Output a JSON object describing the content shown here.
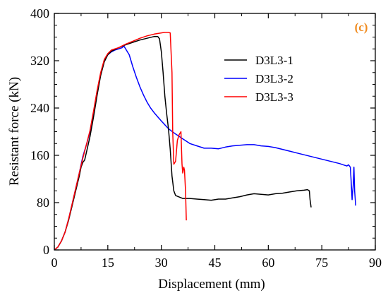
{
  "chart_data": {
    "type": "line",
    "panel_label": "(c)",
    "xlabel": "Displacement (mm)",
    "ylabel": "Resistant force (kN)",
    "xlim": [
      0,
      90
    ],
    "ylim": [
      0,
      400
    ],
    "xticks": [
      0,
      15,
      30,
      45,
      60,
      75,
      90
    ],
    "yticks": [
      0,
      80,
      160,
      240,
      320,
      400
    ],
    "legend_position": "top-right",
    "series": [
      {
        "name": "D3L3-1",
        "color": "#000000",
        "points": [
          [
            0,
            0
          ],
          [
            1,
            5
          ],
          [
            2,
            15
          ],
          [
            3,
            30
          ],
          [
            4,
            50
          ],
          [
            5,
            75
          ],
          [
            6,
            100
          ],
          [
            7,
            125
          ],
          [
            7.5,
            140
          ],
          [
            8,
            148
          ],
          [
            8.5,
            152
          ],
          [
            9,
            165
          ],
          [
            10,
            192
          ],
          [
            11,
            225
          ],
          [
            12,
            262
          ],
          [
            13,
            295
          ],
          [
            14,
            318
          ],
          [
            15,
            330
          ],
          [
            16,
            336
          ],
          [
            18,
            342
          ],
          [
            20,
            347
          ],
          [
            22,
            351
          ],
          [
            24,
            355
          ],
          [
            26,
            358
          ],
          [
            28,
            361
          ],
          [
            29,
            361
          ],
          [
            29.5,
            357
          ],
          [
            30,
            335
          ],
          [
            30.5,
            300
          ],
          [
            31,
            260
          ],
          [
            31.5,
            230
          ],
          [
            32,
            205
          ],
          [
            32.5,
            170
          ],
          [
            33,
            125
          ],
          [
            33.5,
            100
          ],
          [
            34,
            92
          ],
          [
            36,
            87
          ],
          [
            38,
            87
          ],
          [
            40,
            86
          ],
          [
            42,
            85
          ],
          [
            44,
            84
          ],
          [
            46,
            86
          ],
          [
            48,
            86
          ],
          [
            50,
            88
          ],
          [
            52,
            90
          ],
          [
            54,
            93
          ],
          [
            56,
            95
          ],
          [
            58,
            94
          ],
          [
            60,
            93
          ],
          [
            62,
            95
          ],
          [
            64,
            96
          ],
          [
            66,
            98
          ],
          [
            68,
            100
          ],
          [
            70,
            101
          ],
          [
            71,
            102
          ],
          [
            71.5,
            100
          ],
          [
            71.7,
            85
          ],
          [
            72,
            72
          ]
        ]
      },
      {
        "name": "D3L3-2",
        "color": "#0000ff",
        "points": [
          [
            0,
            0
          ],
          [
            1,
            5
          ],
          [
            2,
            15
          ],
          [
            3,
            30
          ],
          [
            4,
            52
          ],
          [
            5,
            78
          ],
          [
            6,
            104
          ],
          [
            7,
            130
          ],
          [
            8,
            158
          ],
          [
            9,
            178
          ],
          [
            10,
            200
          ],
          [
            11,
            232
          ],
          [
            12,
            268
          ],
          [
            13,
            298
          ],
          [
            14,
            320
          ],
          [
            15,
            330
          ],
          [
            16,
            335
          ],
          [
            17,
            338
          ],
          [
            18,
            340
          ],
          [
            19,
            342
          ],
          [
            19.5,
            345
          ],
          [
            20,
            340
          ],
          [
            21,
            330
          ],
          [
            22,
            310
          ],
          [
            23,
            292
          ],
          [
            24,
            276
          ],
          [
            25,
            262
          ],
          [
            26,
            250
          ],
          [
            27,
            240
          ],
          [
            28,
            232
          ],
          [
            30,
            218
          ],
          [
            32,
            205
          ],
          [
            34,
            196
          ],
          [
            36,
            188
          ],
          [
            38,
            180
          ],
          [
            40,
            176
          ],
          [
            42,
            172
          ],
          [
            44,
            172
          ],
          [
            46,
            171
          ],
          [
            48,
            174
          ],
          [
            50,
            176
          ],
          [
            52,
            177
          ],
          [
            54,
            178
          ],
          [
            56,
            178
          ],
          [
            58,
            176
          ],
          [
            60,
            175
          ],
          [
            62,
            173
          ],
          [
            64,
            170
          ],
          [
            66,
            167
          ],
          [
            68,
            164
          ],
          [
            70,
            161
          ],
          [
            72,
            158
          ],
          [
            74,
            155
          ],
          [
            76,
            152
          ],
          [
            78,
            149
          ],
          [
            80,
            146
          ],
          [
            81,
            144
          ],
          [
            82,
            142
          ],
          [
            82.5,
            144
          ],
          [
            83,
            140
          ],
          [
            83.2,
            120
          ],
          [
            83.5,
            85
          ],
          [
            83.8,
            110
          ],
          [
            84,
            140
          ],
          [
            84.2,
            100
          ],
          [
            84.5,
            75
          ]
        ]
      },
      {
        "name": "D3L3-3",
        "color": "#ff0000",
        "points": [
          [
            0,
            0
          ],
          [
            1,
            5
          ],
          [
            2,
            15
          ],
          [
            3,
            30
          ],
          [
            4,
            52
          ],
          [
            5,
            78
          ],
          [
            6,
            104
          ],
          [
            7,
            130
          ],
          [
            8,
            155
          ],
          [
            9,
            178
          ],
          [
            10,
            202
          ],
          [
            11,
            235
          ],
          [
            12,
            270
          ],
          [
            13,
            300
          ],
          [
            14,
            322
          ],
          [
            15,
            332
          ],
          [
            16,
            338
          ],
          [
            18,
            342
          ],
          [
            20,
            348
          ],
          [
            22,
            353
          ],
          [
            24,
            358
          ],
          [
            26,
            362
          ],
          [
            28,
            365
          ],
          [
            30,
            367
          ],
          [
            31,
            368
          ],
          [
            32,
            368
          ],
          [
            32.5,
            367
          ],
          [
            33,
            300
          ],
          [
            33.2,
            200
          ],
          [
            33.5,
            145
          ],
          [
            34,
            150
          ],
          [
            34.5,
            185
          ],
          [
            35,
            195
          ],
          [
            35.5,
            200
          ],
          [
            35.8,
            145
          ],
          [
            36,
            130
          ],
          [
            36.3,
            140
          ],
          [
            36.5,
            135
          ],
          [
            36.8,
            100
          ],
          [
            37,
            50
          ]
        ]
      }
    ]
  }
}
